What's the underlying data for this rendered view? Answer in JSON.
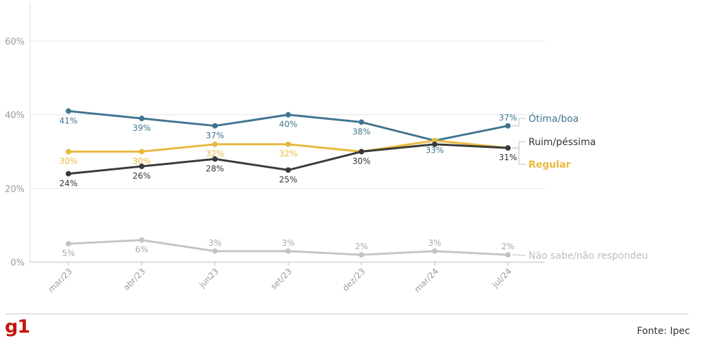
{
  "chart_data": {
    "type": "line",
    "categories": [
      "mar/23",
      "abr/23",
      "jun23",
      "set/23",
      "dez/23",
      "mar/24",
      "jul/24"
    ],
    "y_ticks": [
      "0%",
      "20%",
      "40%",
      "60%"
    ],
    "ylim": [
      0,
      60
    ],
    "grid": true,
    "series": [
      {
        "name": "Ótima/boa",
        "color": "#3f7591",
        "values": [
          41,
          39,
          37,
          40,
          38,
          33,
          37
        ],
        "labels": [
          "41%",
          "39%",
          "37%",
          "40%",
          "38%",
          "33%",
          "37%"
        ],
        "label_pos": [
          "below",
          "below",
          "below",
          "below",
          "below",
          "below",
          "above"
        ]
      },
      {
        "name": "Regular",
        "color": "#e7b93e",
        "values": [
          30,
          30,
          32,
          32,
          30,
          33,
          31
        ],
        "labels": [
          "30%",
          "30%",
          "32%",
          "32%",
          "",
          "",
          ""
        ],
        "label_pos": [
          "below",
          "below",
          "below",
          "below",
          "below",
          "below",
          "below"
        ]
      },
      {
        "name": "Ruim/péssima",
        "color": "#3a3a3a",
        "values": [
          24,
          26,
          28,
          25,
          30,
          32,
          31
        ],
        "labels": [
          "24%",
          "26%",
          "28%",
          "25%",
          "30%",
          "",
          "31%"
        ],
        "label_pos": [
          "below",
          "below",
          "below",
          "below",
          "below",
          "below",
          "below"
        ]
      },
      {
        "name": "Não sabe/não respondeu",
        "color": "#c4c4c4",
        "values": [
          5,
          6,
          3,
          3,
          2,
          3,
          2
        ],
        "labels": [
          "5%",
          "6%",
          "3%",
          "3%",
          "2%",
          "3%",
          "2%"
        ],
        "label_pos": [
          "below",
          "below",
          "above",
          "above",
          "above",
          "above",
          "above"
        ]
      }
    ],
    "legend_placement": "right-end-of-lines"
  },
  "source": "Fonte: Ipec",
  "logo_text": "g1"
}
